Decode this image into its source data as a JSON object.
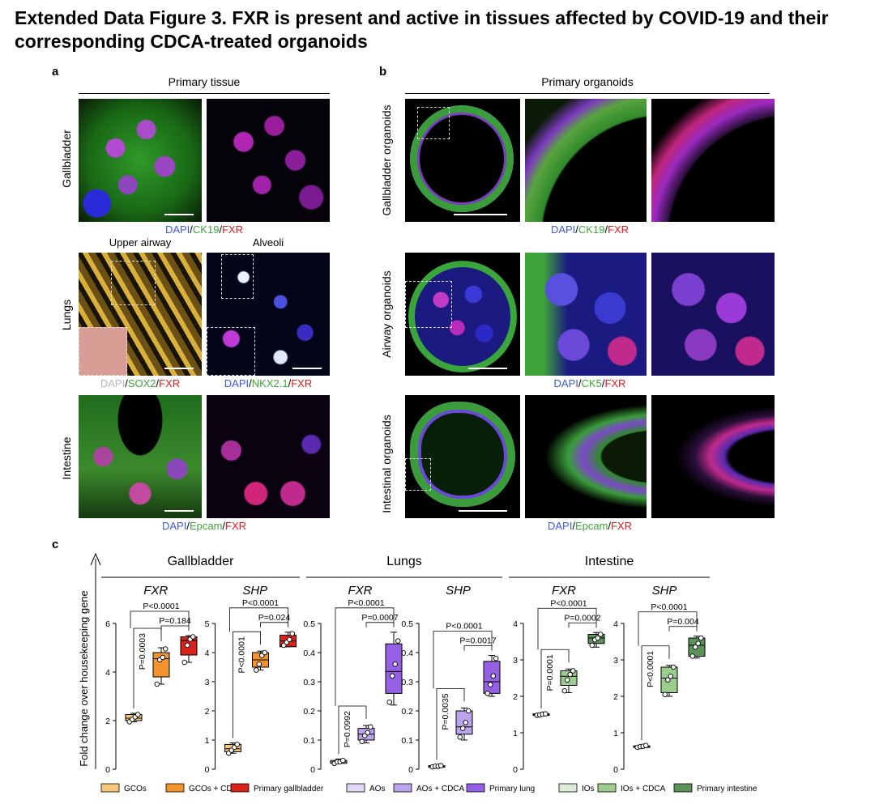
{
  "figure": {
    "title": "Extended Data Figure 3. FXR is present and active in tissues affected by COVID-19 and their corresponding CDCA-treated organoids"
  },
  "panel_a": {
    "letter": "a",
    "header": "Primary tissue",
    "rows": [
      "Gallbladder",
      "Lungs",
      "Intestine"
    ],
    "subheaders": [
      "Upper airway",
      "Alveoli"
    ],
    "captions": {
      "gallbladder": {
        "dapi": "DAPI",
        "s1": "/",
        "marker": "CK19",
        "s2": "/",
        "fxr": "FXR"
      },
      "lungs_left": {
        "dapi": "DAPI",
        "s1": "/",
        "marker": "SOX2",
        "s2": "/",
        "fxr": "FXR"
      },
      "lungs_right": {
        "dapi": "DAPI",
        "s1": "/",
        "marker": "NKX2.1",
        "s2": "/",
        "fxr": "FXR"
      },
      "intestine": {
        "dapi": "DAPI",
        "s1": "/",
        "marker": "Epcam",
        "s2": "/",
        "fxr": "FXR"
      }
    }
  },
  "panel_b": {
    "letter": "b",
    "header": "Primary organoids",
    "rows": [
      "Gallbladder organoids",
      "Airway organoids",
      "Intestinal organoids"
    ],
    "captions": {
      "gallbladder": {
        "dapi": "DAPI",
        "s1": "/",
        "marker": "CK19",
        "s2": "/",
        "fxr": "FXR"
      },
      "airway": {
        "dapi": "DAPI",
        "s1": "/",
        "marker": "CK5",
        "s2": "/",
        "fxr": "FXR"
      },
      "intestinal": {
        "dapi": "DAPI",
        "s1": "/",
        "marker": "Epcam",
        "s2": "/",
        "fxr": "FXR"
      }
    }
  },
  "panel_c": {
    "letter": "c",
    "ylabel": "Fold change over housekeeping gene",
    "chart_data": {
      "type": "box",
      "groups": [
        {
          "name": "Gallbladder",
          "genes": [
            {
              "gene": "FXR",
              "ylim": [
                0,
                6
              ],
              "ticks": [
                "0",
                "2",
                "4",
                "6"
              ],
              "boxes": [
                {
                  "label": "GCOs",
                  "min": 1.95,
                  "q1": 2.0,
                  "median": 2.1,
                  "q3": 2.25,
                  "max": 2.3,
                  "points": [
                    1.95,
                    2.05,
                    2.15,
                    2.25
                  ]
                },
                {
                  "label": "GCOs + CDCA",
                  "min": 3.5,
                  "q1": 3.8,
                  "median": 4.55,
                  "q3": 4.8,
                  "max": 5.0,
                  "points": [
                    3.5,
                    4.5,
                    4.6,
                    4.95
                  ]
                },
                {
                  "label": "Primary gallbladder",
                  "min": 4.4,
                  "q1": 4.7,
                  "median": 5.3,
                  "q3": 5.45,
                  "max": 5.5,
                  "points": [
                    4.4,
                    5.1,
                    5.35,
                    5.45
                  ]
                }
              ],
              "pvalues": [
                {
                  "label": "P=0.0003",
                  "from": 0,
                  "to": 1
                },
                {
                  "label": "P=0.184",
                  "from": 1,
                  "to": 2
                },
                {
                  "label": "P<0.0001",
                  "from": 0,
                  "to": 2
                }
              ]
            },
            {
              "gene": "SHP",
              "ylim": [
                0,
                5
              ],
              "ticks": [
                "0",
                "1",
                "2",
                "3",
                "4",
                "5"
              ],
              "boxes": [
                {
                  "label": "GCOs",
                  "min": 0.55,
                  "q1": 0.6,
                  "median": 0.7,
                  "q3": 0.85,
                  "max": 0.9,
                  "points": [
                    0.55,
                    0.65,
                    0.75,
                    0.85
                  ]
                },
                {
                  "label": "GCOs + CDCA",
                  "min": 3.4,
                  "q1": 3.5,
                  "median": 3.75,
                  "q3": 4.0,
                  "max": 4.05,
                  "points": [
                    3.4,
                    3.6,
                    3.9,
                    4.0
                  ]
                },
                {
                  "label": "Primary gallbladder",
                  "min": 4.2,
                  "q1": 4.2,
                  "median": 4.4,
                  "q3": 4.6,
                  "max": 4.7,
                  "points": [
                    4.25,
                    4.35,
                    4.45,
                    4.65
                  ]
                }
              ],
              "pvalues": [
                {
                  "label": "P<0.0001",
                  "from": 0,
                  "to": 1
                },
                {
                  "label": "P=0.024",
                  "from": 1,
                  "to": 2
                },
                {
                  "label": "P<0.0001",
                  "from": 0,
                  "to": 2
                }
              ]
            }
          ]
        },
        {
          "name": "Lungs",
          "genes": [
            {
              "gene": "FXR",
              "ylim": [
                0,
                0.5
              ],
              "ticks": [
                "0",
                "0.1",
                "0.2",
                "0.3",
                "0.4",
                "0.5"
              ],
              "boxes": [
                {
                  "label": "AOs",
                  "min": 0.02,
                  "q1": 0.02,
                  "median": 0.025,
                  "q3": 0.03,
                  "max": 0.035,
                  "points": [
                    0.02,
                    0.025,
                    0.025,
                    0.03
                  ]
                },
                {
                  "label": "AOs + CDCA",
                  "min": 0.09,
                  "q1": 0.1,
                  "median": 0.12,
                  "q3": 0.14,
                  "max": 0.15,
                  "points": [
                    0.095,
                    0.115,
                    0.125,
                    0.145
                  ]
                },
                {
                  "label": "Primary lung",
                  "min": 0.22,
                  "q1": 0.26,
                  "median": 0.335,
                  "q3": 0.43,
                  "max": 0.47,
                  "points": [
                    0.23,
                    0.32,
                    0.36,
                    0.44
                  ]
                }
              ],
              "pvalues": [
                {
                  "label": "P=0.0992",
                  "from": 0,
                  "to": 1
                },
                {
                  "label": "P=0.0007",
                  "from": 1,
                  "to": 2
                },
                {
                  "label": "P<0.0001",
                  "from": 0,
                  "to": 2
                }
              ]
            },
            {
              "gene": "SHP",
              "ylim": [
                0,
                0.5
              ],
              "ticks": [
                "0",
                "0.1",
                "0.2",
                "0.3",
                "0.4",
                "0.5"
              ],
              "boxes": [
                {
                  "label": "AOs",
                  "min": 0.005,
                  "q1": 0.008,
                  "median": 0.01,
                  "q3": 0.012,
                  "max": 0.015,
                  "points": [
                    0.008,
                    0.01,
                    0.01,
                    0.012
                  ]
                },
                {
                  "label": "AOs + CDCA",
                  "min": 0.1,
                  "q1": 0.12,
                  "median": 0.145,
                  "q3": 0.2,
                  "max": 0.21,
                  "points": [
                    0.11,
                    0.14,
                    0.16,
                    0.2
                  ]
                },
                {
                  "label": "Primary lung",
                  "min": 0.25,
                  "q1": 0.26,
                  "median": 0.3,
                  "q3": 0.37,
                  "max": 0.39,
                  "points": [
                    0.26,
                    0.29,
                    0.32,
                    0.38
                  ]
                }
              ],
              "pvalues": [
                {
                  "label": "P=0.0035",
                  "from": 0,
                  "to": 1
                },
                {
                  "label": "P=0.0017",
                  "from": 1,
                  "to": 2
                },
                {
                  "label": "P<0.0001",
                  "from": 0,
                  "to": 2
                }
              ]
            }
          ]
        },
        {
          "name": "Intestine",
          "genes": [
            {
              "gene": "FXR",
              "ylim": [
                0,
                4
              ],
              "ticks": [
                "0",
                "1",
                "2",
                "3",
                "4"
              ],
              "boxes": [
                {
                  "label": "IOs",
                  "min": 1.47,
                  "q1": 1.48,
                  "median": 1.5,
                  "q3": 1.52,
                  "max": 1.53,
                  "points": [
                    1.48,
                    1.49,
                    1.51,
                    1.52
                  ]
                },
                {
                  "label": "IOs + CDCA",
                  "min": 2.1,
                  "q1": 2.3,
                  "median": 2.55,
                  "q3": 2.7,
                  "max": 2.75,
                  "points": [
                    2.15,
                    2.45,
                    2.6,
                    2.7
                  ]
                },
                {
                  "label": "Primary intestine",
                  "min": 3.35,
                  "q1": 3.45,
                  "median": 3.6,
                  "q3": 3.7,
                  "max": 3.75,
                  "points": [
                    3.4,
                    3.55,
                    3.6,
                    3.7
                  ]
                }
              ],
              "pvalues": [
                {
                  "label": "P=0.0001",
                  "from": 0,
                  "to": 1
                },
                {
                  "label": "P=0.0002",
                  "from": 1,
                  "to": 2
                },
                {
                  "label": "P<0.0001",
                  "from": 0,
                  "to": 2
                }
              ]
            },
            {
              "gene": "SHP",
              "ylim": [
                0,
                4
              ],
              "ticks": [
                "0",
                "1",
                "2",
                "3",
                "4"
              ],
              "boxes": [
                {
                  "label": "IOs",
                  "min": 0.6,
                  "q1": 0.6,
                  "median": 0.62,
                  "q3": 0.64,
                  "max": 0.66,
                  "points": [
                    0.6,
                    0.62,
                    0.63,
                    0.65
                  ]
                },
                {
                  "label": "IOs + CDCA",
                  "min": 2.0,
                  "q1": 2.1,
                  "median": 2.5,
                  "q3": 2.8,
                  "max": 2.85,
                  "points": [
                    2.05,
                    2.45,
                    2.55,
                    2.8
                  ]
                },
                {
                  "label": "Primary intestine",
                  "min": 3.05,
                  "q1": 3.1,
                  "median": 3.4,
                  "q3": 3.6,
                  "max": 3.65,
                  "points": [
                    3.1,
                    3.35,
                    3.45,
                    3.6
                  ]
                }
              ],
              "pvalues": [
                {
                  "label": "P<0.0001",
                  "from": 0,
                  "to": 1
                },
                {
                  "label": "P=0.004",
                  "from": 1,
                  "to": 2
                },
                {
                  "label": "P<0.0001",
                  "from": 0,
                  "to": 2
                }
              ]
            }
          ]
        }
      ],
      "colors": [
        [
          "#f9c779",
          "#f4922d",
          "#d7231a"
        ],
        [
          "#e2d6f7",
          "#bca3ee",
          "#9660e5"
        ],
        [
          "#dcecd7",
          "#9ccc8e",
          "#5b935a"
        ]
      ],
      "legend": [
        {
          "label": "GCOs",
          "color": "#f9c779"
        },
        {
          "label": "GCOs + CDCA",
          "color": "#f4922d"
        },
        {
          "label": "Primary gallbladder",
          "color": "#d7231a"
        },
        {
          "label": "AOs",
          "color": "#e2d6f7"
        },
        {
          "label": "AOs + CDCA",
          "color": "#bca3ee"
        },
        {
          "label": "Primary lung",
          "color": "#9660e5"
        },
        {
          "label": "IOs",
          "color": "#dcecd7"
        },
        {
          "label": "IOs + CDCA",
          "color": "#9ccc8e"
        },
        {
          "label": "Primary intestine",
          "color": "#5b935a"
        }
      ],
      "legend_position": "bottom"
    }
  }
}
